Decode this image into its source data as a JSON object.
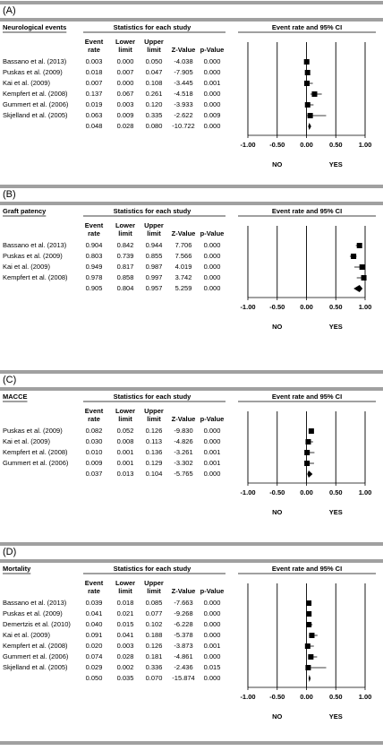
{
  "chart_data": [
    {
      "type": "forest",
      "panel": "(A)",
      "title": "Neurological events",
      "group_header": "Statistics for each study",
      "plot_header": "Event rate and 95% CI",
      "categories": [
        "Bassano et al. (2013)",
        "Puskas et al. (2009)",
        "Kai et al. (2009)",
        "Kempfert et al. (2008)",
        "Gummert et al. (2006)",
        "Skjelland et al. (2005)",
        null
      ],
      "series": [
        {
          "name": "Event rate",
          "values": [
            0.003,
            0.018,
            0.007,
            0.137,
            0.019,
            0.063,
            0.048
          ],
          "value_labels": [
            "0.003",
            "0.018",
            "0.007",
            "0.137",
            "0.019",
            "0.063",
            "0.048"
          ]
        },
        {
          "name": "Lower limit",
          "values": [
            0,
            0.007,
            0,
            0.067,
            0.003,
            0.009,
            0.028
          ],
          "value_labels": [
            "0.000",
            "0.007",
            "0.000",
            "0.067",
            "0.003",
            "0.009",
            "0.028"
          ]
        },
        {
          "name": "Upper limit",
          "values": [
            0.05,
            0.047,
            0.108,
            0.261,
            0.12,
            0.335,
            0.08
          ],
          "value_labels": [
            "0.050",
            "0.047",
            "0.108",
            "0.261",
            "0.120",
            "0.335",
            "0.080"
          ]
        },
        {
          "name": "Z-Value",
          "values": [
            -4.038,
            -7.905,
            -3.445,
            -4.518,
            -3.933,
            -2.622,
            -10.722
          ],
          "value_labels": [
            "-4.038",
            "-7.905",
            "-3.445",
            "-4.518",
            "-3.933",
            "-2.622",
            "-10.722"
          ]
        },
        {
          "name": "p-Value",
          "values": [
            0,
            0,
            0.001,
            0,
            0,
            0.009,
            0
          ],
          "value_labels": [
            "0.000",
            "0.000",
            "0.001",
            "0.000",
            "0.000",
            "0.009",
            "0.000"
          ]
        }
      ],
      "xlim": [
        -1,
        1
      ],
      "xticks": [
        {
          "value": -1,
          "label": "-1.00"
        },
        {
          "value": -0.5,
          "label": "-0.50"
        },
        {
          "value": 0,
          "label": "0.00"
        },
        {
          "value": 0.5,
          "label": "0.50"
        },
        {
          "value": 1,
          "label": "1.00"
        }
      ],
      "direction_labels": [
        "NO",
        "YES"
      ]
    },
    {
      "type": "forest",
      "panel": "(B)",
      "title": "Graft patency",
      "group_header": "Statistics for each study",
      "plot_header": "Event rate and 95% CI",
      "categories": [
        "Bassano et al. (2013)",
        "Puskas et al. (2009)",
        "Kai et al. (2009)",
        "Kempfert et al. (2008)",
        null
      ],
      "series": [
        {
          "name": "Event rate",
          "values": [
            0.904,
            0.803,
            0.949,
            0.978,
            0.905
          ],
          "value_labels": [
            "0.904",
            "0.803",
            "0.949",
            "0.978",
            "0.905"
          ]
        },
        {
          "name": "Lower limit",
          "values": [
            0.842,
            0.739,
            0.817,
            0.858,
            0.804
          ],
          "value_labels": [
            "0.842",
            "0.739",
            "0.817",
            "0.858",
            "0.804"
          ]
        },
        {
          "name": "Upper limit",
          "values": [
            0.944,
            0.855,
            0.987,
            0.997,
            0.957
          ],
          "value_labels": [
            "0.944",
            "0.855",
            "0.987",
            "0.997",
            "0.957"
          ]
        },
        {
          "name": "Z-Value",
          "values": [
            7.706,
            7.566,
            4.019,
            3.742,
            5.259
          ],
          "value_labels": [
            "7.706",
            "7.566",
            "4.019",
            "3.742",
            "5.259"
          ]
        },
        {
          "name": "p-Value",
          "values": [
            0,
            0,
            0,
            0,
            0
          ],
          "value_labels": [
            "0.000",
            "0.000",
            "0.000",
            "0.000",
            "0.000"
          ]
        }
      ],
      "xlim": [
        -1,
        1
      ],
      "xticks": [
        {
          "value": -1,
          "label": "-1.00"
        },
        {
          "value": -0.5,
          "label": "-0.50"
        },
        {
          "value": 0,
          "label": "0.00"
        },
        {
          "value": 0.5,
          "label": "0.50"
        },
        {
          "value": 1,
          "label": "1.00"
        }
      ],
      "direction_labels": [
        "NO",
        "YES"
      ]
    },
    {
      "type": "forest",
      "panel": "(C)",
      "title": "MACCE",
      "group_header": "Statistics for each study",
      "plot_header": "Event rate and 95% CI",
      "categories": [
        "Puskas et al. (2009)",
        "Kai et al. (2009)",
        "Kempfert et al. (2008)",
        "Gummert et al. (2006)",
        null
      ],
      "series": [
        {
          "name": "Event rate",
          "values": [
            0.082,
            0.03,
            0.01,
            0.009,
            0.037
          ],
          "value_labels": [
            "0.082",
            "0.030",
            "0.010",
            "0.009",
            "0.037"
          ]
        },
        {
          "name": "Lower limit",
          "values": [
            0.052,
            0.008,
            0.001,
            0.001,
            0.013
          ],
          "value_labels": [
            "0.052",
            "0.008",
            "0.001",
            "0.001",
            "0.013"
          ]
        },
        {
          "name": "Upper limit",
          "values": [
            0.126,
            0.113,
            0.136,
            0.129,
            0.104
          ],
          "value_labels": [
            "0.126",
            "0.113",
            "0.136",
            "0.129",
            "0.104"
          ]
        },
        {
          "name": "Z-Value",
          "values": [
            -9.83,
            -4.826,
            -3.261,
            -3.302,
            -5.765
          ],
          "value_labels": [
            "-9.830",
            "-4.826",
            "-3.261",
            "-3.302",
            "-5.765"
          ]
        },
        {
          "name": "p-Value",
          "values": [
            0,
            0,
            0.001,
            0.001,
            0
          ],
          "value_labels": [
            "0.000",
            "0.000",
            "0.001",
            "0.001",
            "0.000"
          ]
        }
      ],
      "xlim": [
        -1,
        1
      ],
      "xticks": [
        {
          "value": -1,
          "label": "-1.00"
        },
        {
          "value": -0.5,
          "label": "-0.50"
        },
        {
          "value": 0,
          "label": "0.00"
        },
        {
          "value": 0.5,
          "label": "0.50"
        },
        {
          "value": 1,
          "label": "1.00"
        }
      ],
      "direction_labels": [
        "NO",
        "YES"
      ]
    },
    {
      "type": "forest",
      "panel": "(D)",
      "title": "Mortality",
      "group_header": "Statistics for each study",
      "plot_header": "Event rate and 95% CI",
      "categories": [
        "Bassano et al. (2013)",
        "Puskas et al. (2009)",
        "Demertzis et al. (2010)",
        "Kai et al. (2009)",
        "Kempfert et al. (2008)",
        "Gummert et al. (2006)",
        "Skjelland et al. (2005)",
        null
      ],
      "series": [
        {
          "name": "Event rate",
          "values": [
            0.039,
            0.041,
            0.04,
            0.091,
            0.02,
            0.074,
            0.029,
            0.05
          ],
          "value_labels": [
            "0.039",
            "0.041",
            "0.040",
            "0.091",
            "0.020",
            "0.074",
            "0.029",
            "0.050"
          ]
        },
        {
          "name": "Lower limit",
          "values": [
            0.018,
            0.021,
            0.015,
            0.041,
            0.003,
            0.028,
            0.002,
            0.035
          ],
          "value_labels": [
            "0.018",
            "0.021",
            "0.015",
            "0.041",
            "0.003",
            "0.028",
            "0.002",
            "0.035"
          ]
        },
        {
          "name": "Upper limit",
          "values": [
            0.085,
            0.077,
            0.102,
            0.188,
            0.126,
            0.181,
            0.336,
            0.07
          ],
          "value_labels": [
            "0.085",
            "0.077",
            "0.102",
            "0.188",
            "0.126",
            "0.181",
            "0.336",
            "0.070"
          ]
        },
        {
          "name": "Z-Value",
          "values": [
            -7.663,
            -9.268,
            -6.228,
            -5.378,
            -3.873,
            -4.861,
            -2.436,
            -15.874
          ],
          "value_labels": [
            "-7.663",
            "-9.268",
            "-6.228",
            "-5.378",
            "-3.873",
            "-4.861",
            "-2.436",
            "-15.874"
          ]
        },
        {
          "name": "p-Value",
          "values": [
            0,
            0,
            0,
            0,
            0.001,
            0,
            0.015,
            0
          ],
          "value_labels": [
            "0.000",
            "0.000",
            "0.000",
            "0.000",
            "0.001",
            "0.000",
            "0.015",
            "0.000"
          ]
        }
      ],
      "xlim": [
        -1,
        1
      ],
      "xticks": [
        {
          "value": -1,
          "label": "-1.00"
        },
        {
          "value": -0.5,
          "label": "-0.50"
        },
        {
          "value": 0,
          "label": "0.00"
        },
        {
          "value": 0.5,
          "label": "0.50"
        },
        {
          "value": 1,
          "label": "1.00"
        }
      ],
      "direction_labels": [
        "NO",
        "YES"
      ]
    }
  ]
}
